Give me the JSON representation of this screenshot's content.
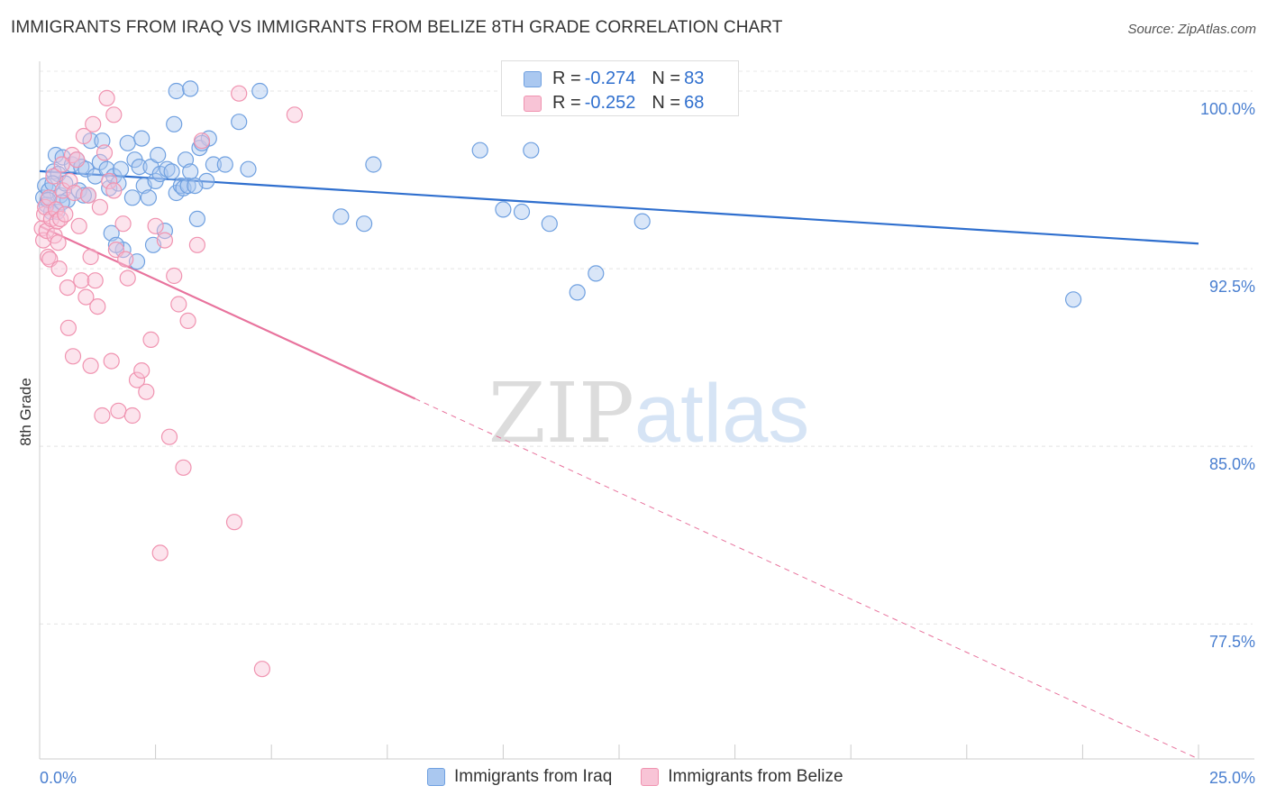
{
  "chart_data": {
    "type": "scatter",
    "title": "IMMIGRANTS FROM IRAQ VS IMMIGRANTS FROM BELIZE 8TH GRADE CORRELATION CHART",
    "source": "Source: ZipAtlas.com",
    "xlabel": "",
    "ylabel": "8th Grade",
    "xlim": [
      0,
      25
    ],
    "ylim": [
      71.8,
      101.6
    ],
    "x_tick_labels": [
      "0.0%",
      "25.0%"
    ],
    "y_ticks": [
      77.5,
      85.0,
      92.5,
      100.0
    ],
    "y_tick_labels": [
      "77.5%",
      "85.0%",
      "92.5%",
      "100.0%"
    ],
    "grid": true,
    "legend_position": "bottom",
    "watermark": "ZIPatlas",
    "series": [
      {
        "name": "Immigrants from Iraq",
        "color": "#6fa0e0",
        "fill": "#aac8f0",
        "line_color": "#2f6fce",
        "r_label": "R =",
        "r_value": "-0.274",
        "n_label": "N =",
        "n_value": "83",
        "trend": {
          "x": [
            0.0,
            25.0
          ],
          "y": [
            96.62,
            93.56
          ],
          "dashed_from": null
        },
        "points": [
          [
            0.08,
            95.5
          ],
          [
            0.12,
            96.0
          ],
          [
            0.15,
            95.2
          ],
          [
            0.2,
            95.8
          ],
          [
            0.25,
            94.9
          ],
          [
            0.3,
            96.6
          ],
          [
            0.35,
            97.3
          ],
          [
            0.4,
            96.5
          ],
          [
            0.45,
            95.6
          ],
          [
            0.5,
            97.2
          ],
          [
            0.55,
            96.1
          ],
          [
            0.6,
            95.4
          ],
          [
            0.7,
            96.9
          ],
          [
            0.8,
            97.1
          ],
          [
            0.85,
            95.8
          ],
          [
            0.9,
            96.8
          ],
          [
            1.0,
            96.7
          ],
          [
            1.05,
            95.6
          ],
          [
            1.1,
            97.9
          ],
          [
            1.2,
            96.4
          ],
          [
            1.3,
            97.0
          ],
          [
            1.35,
            97.9
          ],
          [
            1.45,
            96.7
          ],
          [
            1.5,
            95.9
          ],
          [
            1.6,
            96.4
          ],
          [
            1.7,
            96.1
          ],
          [
            1.75,
            96.7
          ],
          [
            1.8,
            93.3
          ],
          [
            1.9,
            97.8
          ],
          [
            2.0,
            95.5
          ],
          [
            2.05,
            97.1
          ],
          [
            2.15,
            96.8
          ],
          [
            2.2,
            98.0
          ],
          [
            2.25,
            96.0
          ],
          [
            2.35,
            95.5
          ],
          [
            2.4,
            96.8
          ],
          [
            2.5,
            96.2
          ],
          [
            2.55,
            97.3
          ],
          [
            2.6,
            96.5
          ],
          [
            2.7,
            94.1
          ],
          [
            2.75,
            96.7
          ],
          [
            2.85,
            96.6
          ],
          [
            2.9,
            98.6
          ],
          [
            2.95,
            95.7
          ],
          [
            3.05,
            96.0
          ],
          [
            3.1,
            95.9
          ],
          [
            3.15,
            97.1
          ],
          [
            3.25,
            96.6
          ],
          [
            3.4,
            94.6
          ],
          [
            3.45,
            97.6
          ],
          [
            3.6,
            96.2
          ],
          [
            3.65,
            98.0
          ],
          [
            3.75,
            96.9
          ],
          [
            4.0,
            96.9
          ],
          [
            4.3,
            98.7
          ],
          [
            4.5,
            96.7
          ],
          [
            6.5,
            94.7
          ],
          [
            7.0,
            94.4
          ],
          [
            7.2,
            96.9
          ],
          [
            9.5,
            97.5
          ],
          [
            10.0,
            95.0
          ],
          [
            10.4,
            94.9
          ],
          [
            10.6,
            97.5
          ],
          [
            11.0,
            94.4
          ],
          [
            11.6,
            91.5
          ],
          [
            12.0,
            92.3
          ],
          [
            13.0,
            94.5
          ],
          [
            22.3,
            91.2
          ],
          [
            0.18,
            95.4
          ],
          [
            0.28,
            96.1
          ],
          [
            0.38,
            94.9
          ],
          [
            0.48,
            95.3
          ],
          [
            1.55,
            94.0
          ],
          [
            2.1,
            92.8
          ],
          [
            2.45,
            93.5
          ],
          [
            1.65,
            93.5
          ],
          [
            3.5,
            97.8
          ],
          [
            3.2,
            96.0
          ],
          [
            2.95,
            100.0
          ],
          [
            3.35,
            96.0
          ],
          [
            4.75,
            100.0
          ],
          [
            3.25,
            100.1
          ],
          [
            0.95,
            95.6
          ]
        ]
      },
      {
        "name": "Immigrants from Belize",
        "color": "#f093b0",
        "fill": "#f8c4d6",
        "line_color": "#e8739d",
        "r_label": "R =",
        "r_value": "-0.252",
        "n_label": "N =",
        "n_value": "68",
        "trend": {
          "x": [
            0.0,
            25.0
          ],
          "y": [
            94.3,
            71.8
          ],
          "dashed_from": 8.1
        },
        "points": [
          [
            0.05,
            94.2
          ],
          [
            0.08,
            93.7
          ],
          [
            0.1,
            94.8
          ],
          [
            0.12,
            95.1
          ],
          [
            0.15,
            94.1
          ],
          [
            0.18,
            93.0
          ],
          [
            0.2,
            95.5
          ],
          [
            0.22,
            92.9
          ],
          [
            0.25,
            94.6
          ],
          [
            0.3,
            96.4
          ],
          [
            0.32,
            93.9
          ],
          [
            0.35,
            95.0
          ],
          [
            0.38,
            94.5
          ],
          [
            0.4,
            93.6
          ],
          [
            0.42,
            92.5
          ],
          [
            0.45,
            94.6
          ],
          [
            0.5,
            95.8
          ],
          [
            0.55,
            94.8
          ],
          [
            0.6,
            91.7
          ],
          [
            0.65,
            96.2
          ],
          [
            0.7,
            97.3
          ],
          [
            0.72,
            88.8
          ],
          [
            0.75,
            95.7
          ],
          [
            0.8,
            97.1
          ],
          [
            0.85,
            94.3
          ],
          [
            0.9,
            92.0
          ],
          [
            0.95,
            98.1
          ],
          [
            1.0,
            91.3
          ],
          [
            1.05,
            95.6
          ],
          [
            1.1,
            88.4
          ],
          [
            1.15,
            98.6
          ],
          [
            1.2,
            92.0
          ],
          [
            1.25,
            90.9
          ],
          [
            1.3,
            95.1
          ],
          [
            1.35,
            86.3
          ],
          [
            1.4,
            97.4
          ],
          [
            1.5,
            96.2
          ],
          [
            1.55,
            88.6
          ],
          [
            1.6,
            95.8
          ],
          [
            1.65,
            93.3
          ],
          [
            1.7,
            86.5
          ],
          [
            1.8,
            94.4
          ],
          [
            1.85,
            92.9
          ],
          [
            1.9,
            92.1
          ],
          [
            2.0,
            86.3
          ],
          [
            2.1,
            87.8
          ],
          [
            2.2,
            88.2
          ],
          [
            2.3,
            87.3
          ],
          [
            2.4,
            89.5
          ],
          [
            2.5,
            94.3
          ],
          [
            2.6,
            80.5
          ],
          [
            2.7,
            93.7
          ],
          [
            2.8,
            85.4
          ],
          [
            2.9,
            92.2
          ],
          [
            3.0,
            91.0
          ],
          [
            3.1,
            84.1
          ],
          [
            3.2,
            90.3
          ],
          [
            3.4,
            93.5
          ],
          [
            3.5,
            97.9
          ],
          [
            4.2,
            81.8
          ],
          [
            4.3,
            99.9
          ],
          [
            4.8,
            75.6
          ],
          [
            5.5,
            99.0
          ],
          [
            1.45,
            99.7
          ],
          [
            1.6,
            99.0
          ],
          [
            1.1,
            93.0
          ],
          [
            0.48,
            96.9
          ],
          [
            0.62,
            90.0
          ]
        ]
      }
    ]
  }
}
